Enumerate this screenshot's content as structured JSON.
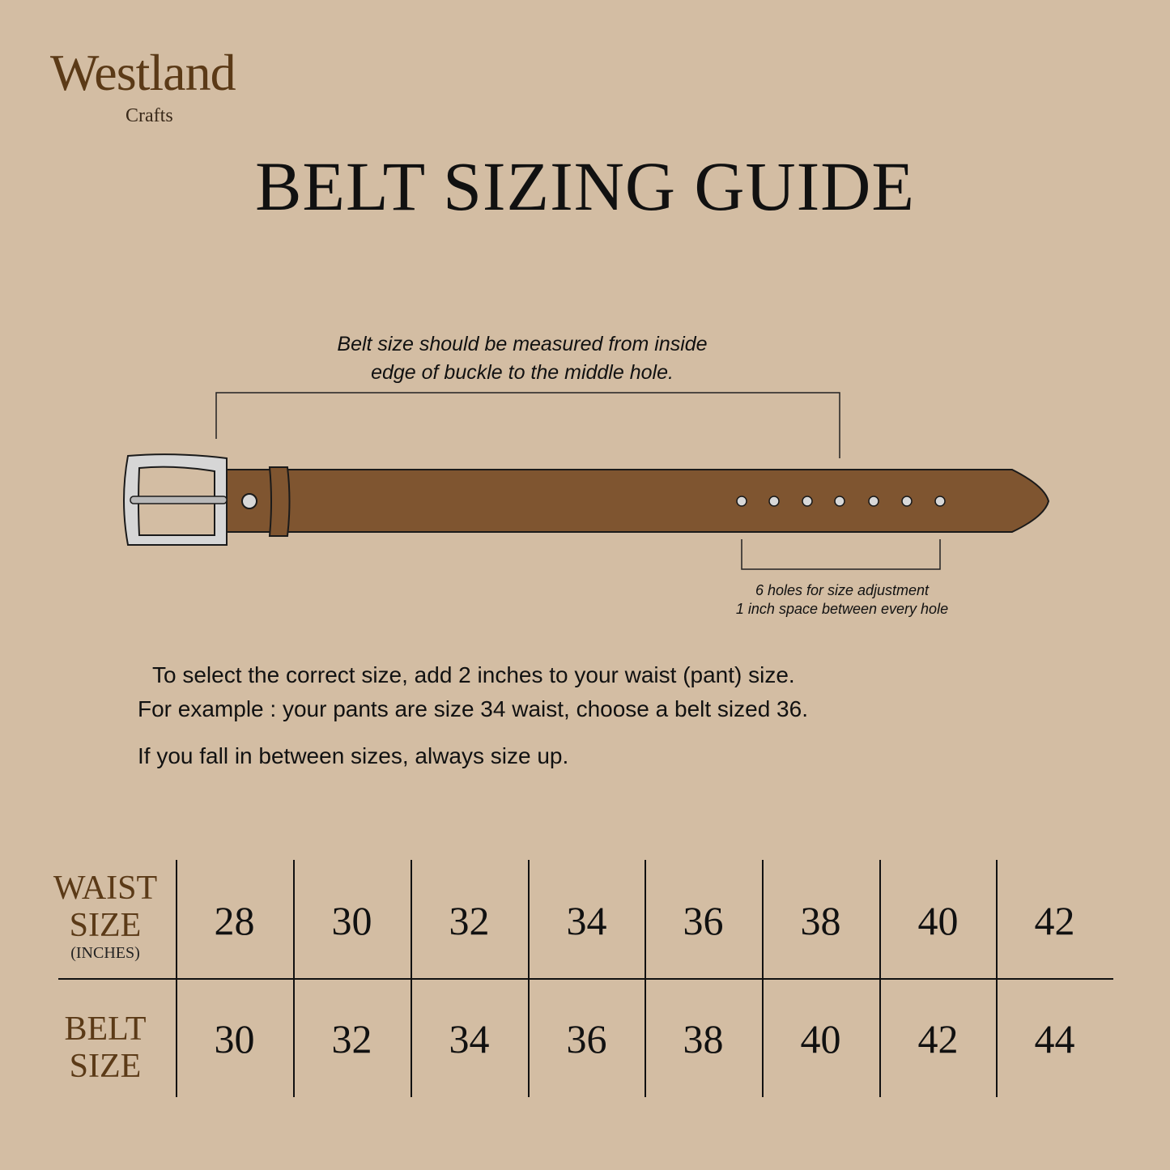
{
  "brand": {
    "name": "Westland",
    "sub": "Crafts"
  },
  "title": "BELT SIZING GUIDE",
  "measure_note": [
    "Belt size should be measured from inside",
    "edge of buckle to the middle hole."
  ],
  "holes_note": [
    "6 holes for size adjustment",
    "1 inch space between every hole"
  ],
  "instructions": [
    "To select the correct size, add 2 inches to your waist (pant) size.",
    "For example : your pants are size 34 waist, choose a belt sized 36.",
    "If you fall in between sizes, always size up."
  ],
  "colors": {
    "background": "#d3bda3",
    "belt": "#7f5530",
    "buckle": "#d6d6d6",
    "label": "#5b3a17"
  },
  "table": {
    "waist_label": [
      "WAIST",
      "SIZE",
      "(INCHES)"
    ],
    "belt_label": [
      "BELT",
      "SIZE"
    ],
    "waist": [
      "28",
      "30",
      "32",
      "34",
      "36",
      "38",
      "40",
      "42"
    ],
    "belt": [
      "30",
      "32",
      "34",
      "36",
      "38",
      "40",
      "42",
      "44"
    ]
  }
}
